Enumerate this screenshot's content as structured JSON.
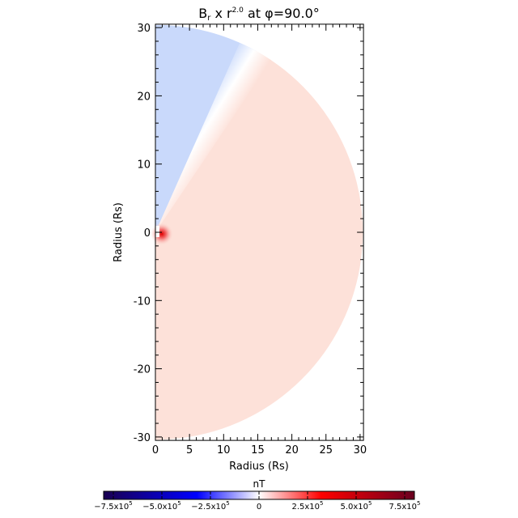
{
  "chart_data": {
    "type": "heatmap",
    "title": "B, x r^2.0 at φ=90.0°",
    "title_parts": {
      "main": "B",
      "sub": "r",
      "mid": " x r",
      "exp": "2.0",
      "tail": " at φ=90.0°"
    },
    "xlabel": "Radius (Rs)",
    "ylabel": "Radius (Rs)",
    "xlim": [
      0,
      30.5
    ],
    "ylim": [
      -30.5,
      30.5
    ],
    "xticks": [
      "0",
      "5",
      "10",
      "15",
      "20",
      "25",
      "30"
    ],
    "yticks": [
      "30",
      "20",
      "10",
      "0",
      "-10",
      "-20",
      "-30"
    ],
    "domain_shape": "half-disk, radius 30 Rs",
    "regions": [
      {
        "description_value": "negative",
        "approx_value": -50000,
        "polar_angle_range_deg": [
          0,
          29
        ],
        "color": "#c9d9fb"
      },
      {
        "description_value": "positive",
        "approx_value": 40000,
        "polar_angle_range_deg": [
          29,
          180
        ],
        "color": "#fde1d9"
      }
    ],
    "colorbar": {
      "label": "nT",
      "range": [
        -800000,
        800000
      ],
      "ticks": [
        -750000,
        -500000,
        -250000,
        0,
        250000,
        500000,
        750000
      ],
      "tick_labels": [
        {
          "m": "−7.5x10",
          "e": "5"
        },
        {
          "m": "−5.0x10",
          "e": "5"
        },
        {
          "m": "−2.5x10",
          "e": "5"
        },
        {
          "m": "0",
          "e": ""
        },
        {
          "m": "2.5x10",
          "e": "5"
        },
        {
          "m": "5.0x10",
          "e": "5"
        },
        {
          "m": "7.5x10",
          "e": "5"
        }
      ],
      "colors": [
        "#1a0050",
        "#0000ff",
        "#ffffff",
        "#ff0000",
        "#6a0020"
      ]
    }
  }
}
